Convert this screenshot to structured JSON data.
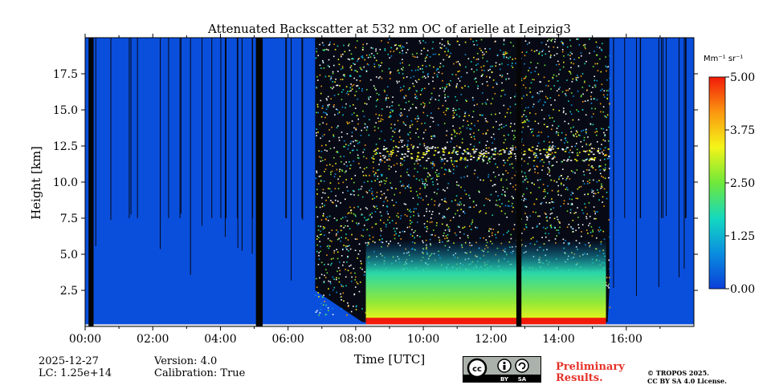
{
  "chart_data": {
    "type": "heatmap",
    "title": "Attenuated Backscatter at 532 nm OC of arielle at Leipzig3",
    "xlabel": "Time [UTC]",
    "ylabel": "Height [km]",
    "xlim": [
      0,
      18
    ],
    "ylim": [
      0,
      20
    ],
    "x_ticks": [
      "00:00",
      "02:00",
      "04:00",
      "06:00",
      "08:00",
      "10:00",
      "12:00",
      "14:00",
      "16:00"
    ],
    "x_tick_values": [
      0,
      2,
      4,
      6,
      8,
      10,
      12,
      14,
      16
    ],
    "y_ticks": [
      "2.5",
      "5.0",
      "7.5",
      "10.0",
      "12.5",
      "15.0",
      "17.5"
    ],
    "y_tick_values": [
      2.5,
      5.0,
      7.5,
      10.0,
      12.5,
      15.0,
      17.5
    ],
    "colorbar": {
      "unit_label": "Mm⁻¹ sr⁻¹",
      "range": [
        0,
        5
      ],
      "ticks": [
        "0.00",
        "1.25",
        "2.50",
        "3.75",
        "5.00"
      ],
      "tick_values": [
        0,
        1.25,
        2.5,
        3.75,
        5.0
      ],
      "colors": [
        "#0a3fd8",
        "#0a8fe0",
        "#13d8c0",
        "#6fe83a",
        "#f5f518",
        "#fb9a10",
        "#f21a0a"
      ]
    },
    "data_gaps_hours": [
      [
        0.1,
        0.25
      ],
      [
        5.05,
        5.25
      ],
      [
        12.75,
        12.9
      ]
    ],
    "features": [
      {
        "name": "daylight noise region",
        "start_hour": 6.8,
        "end_hour": 15.5
      },
      {
        "name": "boundary layer high backscatter",
        "start_hour": 8.3,
        "end_hour": 15.4,
        "height_km": [
          0.1,
          0.6
        ],
        "value": 5.0
      },
      {
        "name": "cirrus layer",
        "start_hour": 8.5,
        "end_hour": 15.5,
        "height_km": [
          11.5,
          12.5
        ],
        "value": 3.5
      }
    ]
  },
  "footer": {
    "date": "2025-12-27",
    "lc": "LC: 1.25e+14",
    "version": "Version: 4.0",
    "calibration": "Calibration: True",
    "preliminary_line1": "Preliminary",
    "preliminary_line2": "Results.",
    "copyright": "© TROPOS 2025.",
    "license": "CC BY SA 4.0 License.",
    "cc_by": "BY",
    "cc_sa": "SA"
  }
}
